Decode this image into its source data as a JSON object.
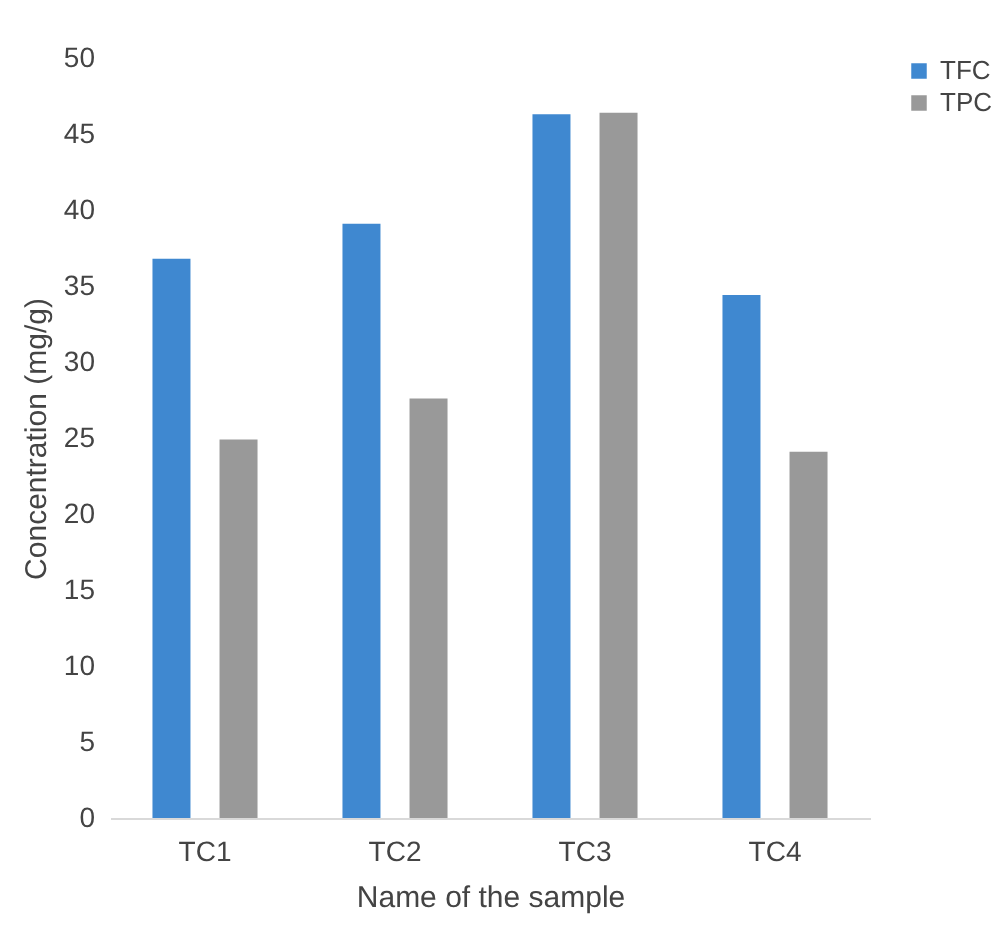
{
  "chart_data": {
    "type": "bar",
    "xlabel": "Name of the sample",
    "ylabel": "Concentration  (mg/g)",
    "categories": [
      "TC1",
      "TC2",
      "TC3",
      "TC4"
    ],
    "series": [
      {
        "name": "TFC",
        "color": "#3f88d0",
        "values": [
          36.8,
          39.1,
          46.3,
          34.4
        ]
      },
      {
        "name": "TPC",
        "color": "#999999",
        "values": [
          24.9,
          27.6,
          46.4,
          24.1
        ]
      }
    ],
    "ylim": [
      0,
      50
    ],
    "yticks": [
      0,
      5,
      10,
      15,
      20,
      25,
      30,
      35,
      40,
      45,
      50
    ],
    "grid": false,
    "legend": "right"
  }
}
